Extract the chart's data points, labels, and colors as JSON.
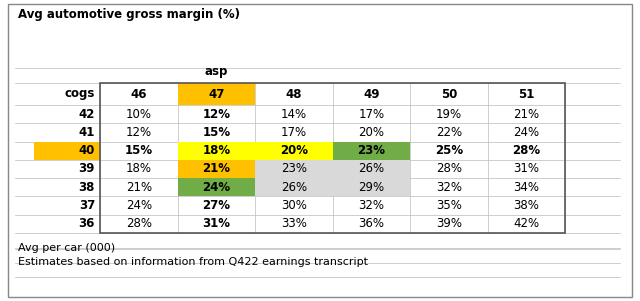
{
  "title": "Avg automotive gross margin (%)",
  "asp_label": "asp",
  "cogs_label": "cogs",
  "asp_values": [
    "46",
    "47",
    "48",
    "49",
    "50",
    "51"
  ],
  "cogs_values": [
    "42",
    "41",
    "40",
    "39",
    "38",
    "37",
    "36"
  ],
  "table_data": [
    [
      "10%",
      "12%",
      "14%",
      "17%",
      "19%",
      "21%"
    ],
    [
      "12%",
      "15%",
      "17%",
      "20%",
      "22%",
      "24%"
    ],
    [
      "15%",
      "18%",
      "20%",
      "23%",
      "25%",
      "28%"
    ],
    [
      "18%",
      "21%",
      "23%",
      "26%",
      "28%",
      "31%"
    ],
    [
      "21%",
      "24%",
      "26%",
      "29%",
      "32%",
      "34%"
    ],
    [
      "24%",
      "27%",
      "30%",
      "32%",
      "35%",
      "38%"
    ],
    [
      "28%",
      "31%",
      "33%",
      "36%",
      "39%",
      "42%"
    ]
  ],
  "cell_colors": [
    [
      "none",
      "none",
      "none",
      "none",
      "none",
      "none"
    ],
    [
      "none",
      "none",
      "none",
      "none",
      "none",
      "none"
    ],
    [
      "none",
      "yellow",
      "yellow",
      "green",
      "none",
      "none"
    ],
    [
      "none",
      "orange",
      "lgray",
      "lgray",
      "none",
      "none"
    ],
    [
      "none",
      "green",
      "lgray",
      "lgray",
      "none",
      "none"
    ],
    [
      "none",
      "none",
      "none",
      "none",
      "none",
      "none"
    ],
    [
      "none",
      "none",
      "none",
      "none",
      "none",
      "none"
    ]
  ],
  "footer1": "Avg per car (000)",
  "footer2": "Estimates based on information from Q422 earnings transcript",
  "gold_color": "#FFC000",
  "yellow_color": "#FFFF00",
  "orange_color": "#FFC000",
  "green_color": "#70AD47",
  "lgray_color": "#D9D9D9",
  "bg_color": "#FFFFFF",
  "grid_color": "#BBBBBB",
  "outer_border_color": "#888888",
  "fig_width": 6.4,
  "fig_height": 3.01,
  "dpi": 100
}
